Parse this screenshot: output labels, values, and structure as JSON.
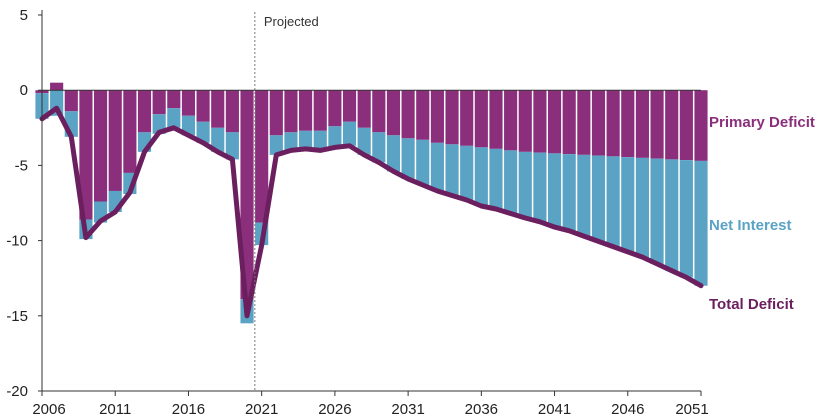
{
  "chart_data": {
    "type": "bar",
    "title": "",
    "xlabel": "",
    "ylabel": "",
    "ylim": [
      -20,
      5
    ],
    "xlim": [
      2006,
      2051
    ],
    "y_ticks": [
      "5",
      "0",
      "-5",
      "-10",
      "-15",
      "-20"
    ],
    "x_ticks": [
      "2006",
      "2011",
      "2016",
      "2021",
      "2026",
      "2031",
      "2036",
      "2041",
      "2046",
      "2051"
    ],
    "projected_label": "Projected",
    "projected_start": 2021,
    "years": [
      2006,
      2007,
      2008,
      2009,
      2010,
      2011,
      2012,
      2013,
      2014,
      2015,
      2016,
      2017,
      2018,
      2019,
      2020,
      2021,
      2022,
      2023,
      2024,
      2025,
      2026,
      2027,
      2028,
      2029,
      2030,
      2031,
      2032,
      2033,
      2034,
      2035,
      2036,
      2037,
      2038,
      2039,
      2040,
      2041,
      2042,
      2043,
      2044,
      2045,
      2046,
      2047,
      2048,
      2049,
      2050,
      2051
    ],
    "series": [
      {
        "name": "Primary Deficit",
        "color": "#8b2f7d",
        "values": [
          -0.2,
          0.5,
          -1.4,
          -8.6,
          -7.4,
          -6.7,
          -5.5,
          -2.8,
          -1.6,
          -1.2,
          -1.7,
          -2.1,
          -2.5,
          -2.8,
          -13.9,
          -8.8,
          -3.0,
          -2.8,
          -2.7,
          -2.7,
          -2.4,
          -2.1,
          -2.5,
          -2.8,
          -3.0,
          -3.2,
          -3.3,
          -3.5,
          -3.6,
          -3.7,
          -3.8,
          -3.9,
          -4.0,
          -4.1,
          -4.15,
          -4.2,
          -4.25,
          -4.3,
          -4.35,
          -4.4,
          -4.45,
          -4.5,
          -4.55,
          -4.6,
          -4.65,
          -4.7
        ]
      },
      {
        "name": "Net Interest",
        "color": "#5ba3c4",
        "values": [
          -1.7,
          -1.7,
          -1.7,
          -1.3,
          -1.4,
          -1.4,
          -1.4,
          -1.3,
          -1.3,
          -1.3,
          -1.3,
          -1.4,
          -1.6,
          -1.8,
          -1.6,
          -1.5,
          -1.3,
          -1.3,
          -1.3,
          -1.3,
          -1.4,
          -1.6,
          -1.8,
          -2.0,
          -2.4,
          -2.7,
          -3.0,
          -3.2,
          -3.4,
          -3.6,
          -3.9,
          -4.0,
          -4.2,
          -4.4,
          -4.6,
          -4.9,
          -5.1,
          -5.4,
          -5.7,
          -6.0,
          -6.3,
          -6.6,
          -7.0,
          -7.4,
          -7.8,
          -8.3
        ]
      },
      {
        "name": "Total Deficit",
        "color": "#6b1f5f",
        "values": [
          -1.9,
          -1.2,
          -3.1,
          -9.8,
          -8.7,
          -8.1,
          -6.8,
          -4.1,
          -2.8,
          -2.5,
          -3.0,
          -3.5,
          -4.1,
          -4.6,
          -15.0,
          -10.3,
          -4.3,
          -4.0,
          -3.9,
          -4.0,
          -3.8,
          -3.7,
          -4.3,
          -4.8,
          -5.4,
          -5.9,
          -6.3,
          -6.7,
          -7.0,
          -7.3,
          -7.7,
          -7.9,
          -8.2,
          -8.5,
          -8.75,
          -9.1,
          -9.35,
          -9.7,
          -10.05,
          -10.4,
          -10.75,
          -11.1,
          -11.55,
          -12.0,
          -12.45,
          -13.0
        ]
      }
    ],
    "legend": [
      {
        "label": "Primary Deficit",
        "color": "#8b2f7d"
      },
      {
        "label": "Net Interest",
        "color": "#5ba3c4"
      },
      {
        "label": "Total Deficit",
        "color": "#6b1f5f"
      }
    ]
  }
}
